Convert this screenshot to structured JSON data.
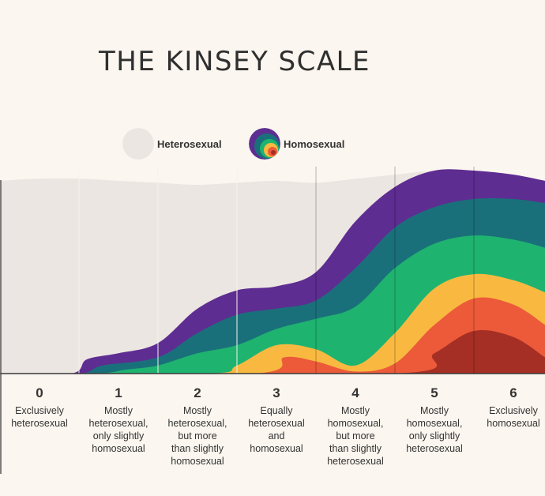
{
  "title": "THE KINSEY SCALE",
  "legend": {
    "hetero_label": "Heterosexual",
    "homo_label": "Homosexual"
  },
  "colors": {
    "background": "#fbf6ef",
    "hetero": "#ece6e2",
    "purple": "#5e2d91",
    "teal": "#1a707a",
    "green": "#1fb370",
    "yellow": "#f9b940",
    "orange": "#ec5a3a",
    "red": "#a52f24"
  },
  "chart_data": {
    "type": "area",
    "title": "THE KINSEY SCALE",
    "xlabel": "",
    "ylabel": "",
    "x": [
      0,
      1,
      2,
      3,
      4,
      5,
      6
    ],
    "xlim": [
      0,
      6.9
    ],
    "ylim": [
      0,
      1
    ],
    "legend_position": "top",
    "grid": true,
    "categories": [
      {
        "number": "0",
        "lines": [
          "Exclusively",
          "heterosexual"
        ]
      },
      {
        "number": "1",
        "lines": [
          "Mostly",
          "heterosexual,",
          "only slightly",
          "homosexual"
        ]
      },
      {
        "number": "2",
        "lines": [
          "Mostly",
          "heterosexual,",
          "but more",
          "than slightly",
          "homosexual"
        ]
      },
      {
        "number": "3",
        "lines": [
          "Equally",
          "heterosexual",
          "and",
          "homosexual"
        ]
      },
      {
        "number": "4",
        "lines": [
          "Mostly",
          "homosexual,",
          "but more",
          "than slightly",
          "heterosexual"
        ]
      },
      {
        "number": "5",
        "lines": [
          "Mostly",
          "homosexual,",
          "only slightly",
          "heterosexual"
        ]
      },
      {
        "number": "6",
        "lines": [
          "Exclusively",
          "homosexual"
        ]
      }
    ],
    "series": [
      {
        "name": "Heterosexual",
        "color": "#ece6e2",
        "points": [
          [
            0,
            0.95
          ],
          [
            0.5,
            0.96
          ],
          [
            1,
            0.96
          ],
          [
            1.5,
            0.95
          ],
          [
            2,
            0.94
          ],
          [
            2.5,
            0.93
          ],
          [
            3,
            0.94
          ],
          [
            3.5,
            0.95
          ],
          [
            4,
            0.94
          ],
          [
            4.5,
            0.96
          ],
          [
            5,
            0.98
          ],
          [
            5.5,
            1.0
          ],
          [
            6,
            1.0
          ],
          [
            6.5,
            0.98
          ],
          [
            6.9,
            0.95
          ]
        ]
      },
      {
        "name": "",
        "color": "#5e2d91",
        "points": [
          [
            0,
            0
          ],
          [
            0.9,
            0
          ],
          [
            1.1,
            0.07
          ],
          [
            1.5,
            0.1
          ],
          [
            2,
            0.15
          ],
          [
            2.5,
            0.32
          ],
          [
            3,
            0.41
          ],
          [
            3.5,
            0.43
          ],
          [
            4,
            0.5
          ],
          [
            4.5,
            0.75
          ],
          [
            5,
            0.92
          ],
          [
            5.5,
            1.0
          ],
          [
            6,
            1.0
          ],
          [
            6.5,
            0.98
          ],
          [
            6.9,
            0.95
          ]
        ]
      },
      {
        "name": "",
        "color": "#1a707a",
        "points": [
          [
            0,
            0
          ],
          [
            1,
            0
          ],
          [
            1.3,
            0.04
          ],
          [
            2,
            0.08
          ],
          [
            2.5,
            0.2
          ],
          [
            3,
            0.29
          ],
          [
            3.5,
            0.32
          ],
          [
            4,
            0.36
          ],
          [
            4.5,
            0.52
          ],
          [
            5,
            0.72
          ],
          [
            5.5,
            0.82
          ],
          [
            6,
            0.86
          ],
          [
            6.5,
            0.86
          ],
          [
            6.9,
            0.84
          ]
        ]
      },
      {
        "name": "",
        "color": "#1fb370",
        "points": [
          [
            0,
            0
          ],
          [
            1.2,
            0
          ],
          [
            1.6,
            0.02
          ],
          [
            2,
            0.04
          ],
          [
            2.5,
            0.1
          ],
          [
            3,
            0.14
          ],
          [
            3.5,
            0.22
          ],
          [
            4,
            0.27
          ],
          [
            4.5,
            0.33
          ],
          [
            5,
            0.52
          ],
          [
            5.5,
            0.64
          ],
          [
            6,
            0.68
          ],
          [
            6.5,
            0.66
          ],
          [
            6.9,
            0.62
          ]
        ]
      },
      {
        "name": "",
        "color": "#f9b940",
        "points": [
          [
            0,
            0
          ],
          [
            2.6,
            0
          ],
          [
            3,
            0.04
          ],
          [
            3.5,
            0.14
          ],
          [
            4,
            0.12
          ],
          [
            4.5,
            0.04
          ],
          [
            5,
            0.2
          ],
          [
            5.5,
            0.42
          ],
          [
            6,
            0.49
          ],
          [
            6.5,
            0.46
          ],
          [
            6.9,
            0.4
          ]
        ]
      },
      {
        "name": "",
        "color": "#ec5a3a",
        "points": [
          [
            0,
            0
          ],
          [
            3.2,
            0
          ],
          [
            3.6,
            0.08
          ],
          [
            4,
            0.06
          ],
          [
            4.5,
            0.01
          ],
          [
            5,
            0.05
          ],
          [
            5.5,
            0.24
          ],
          [
            6,
            0.37
          ],
          [
            6.5,
            0.34
          ],
          [
            6.9,
            0.24
          ]
        ]
      },
      {
        "name": "",
        "color": "#a52f24",
        "points": [
          [
            0,
            0
          ],
          [
            5,
            0
          ],
          [
            5.5,
            0.1
          ],
          [
            6,
            0.21
          ],
          [
            6.5,
            0.18
          ],
          [
            6.9,
            0.08
          ]
        ]
      }
    ]
  }
}
